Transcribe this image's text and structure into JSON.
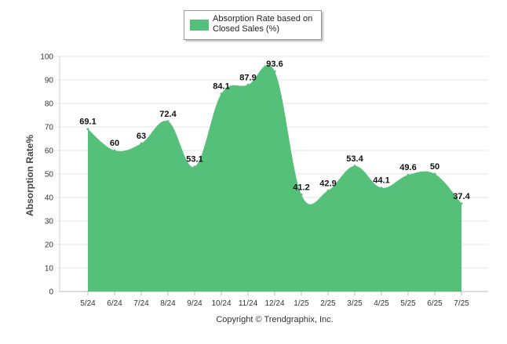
{
  "chart_data": {
    "type": "area",
    "categories": [
      "5/24",
      "6/24",
      "7/24",
      "8/24",
      "9/24",
      "10/24",
      "11/24",
      "12/24",
      "1/25",
      "2/25",
      "3/25",
      "4/25",
      "5/25",
      "6/25",
      "7/25"
    ],
    "series": [
      {
        "name": "Absorption Rate based on Closed Sales (%)",
        "values": [
          69.1,
          60,
          63,
          72.4,
          53.1,
          84.1,
          87.9,
          93.6,
          41.2,
          42.9,
          53.4,
          44.1,
          49.6,
          50,
          37.4
        ],
        "color": "#55c07a"
      }
    ],
    "ylabel": "Absorption Rate%",
    "xlabel": "",
    "ylim": [
      0,
      100
    ],
    "yticks": [
      0,
      10,
      20,
      30,
      40,
      50,
      60,
      70,
      80,
      90,
      100
    ],
    "grid": true,
    "legend_position": "top-center",
    "data_labels": [
      "69.1",
      "60",
      "63",
      "72.4",
      "53.1",
      "84.1",
      "87.9",
      "93.6",
      "41.2",
      "42.9",
      "53.4",
      "44.1",
      "49.6",
      "50",
      "37.4"
    ]
  },
  "legend": {
    "label_line1": "Absorption Rate based on",
    "label_line2": "Closed Sales (%)"
  },
  "footer": {
    "copyright": "Copyright © Trendgraphix, Inc."
  }
}
